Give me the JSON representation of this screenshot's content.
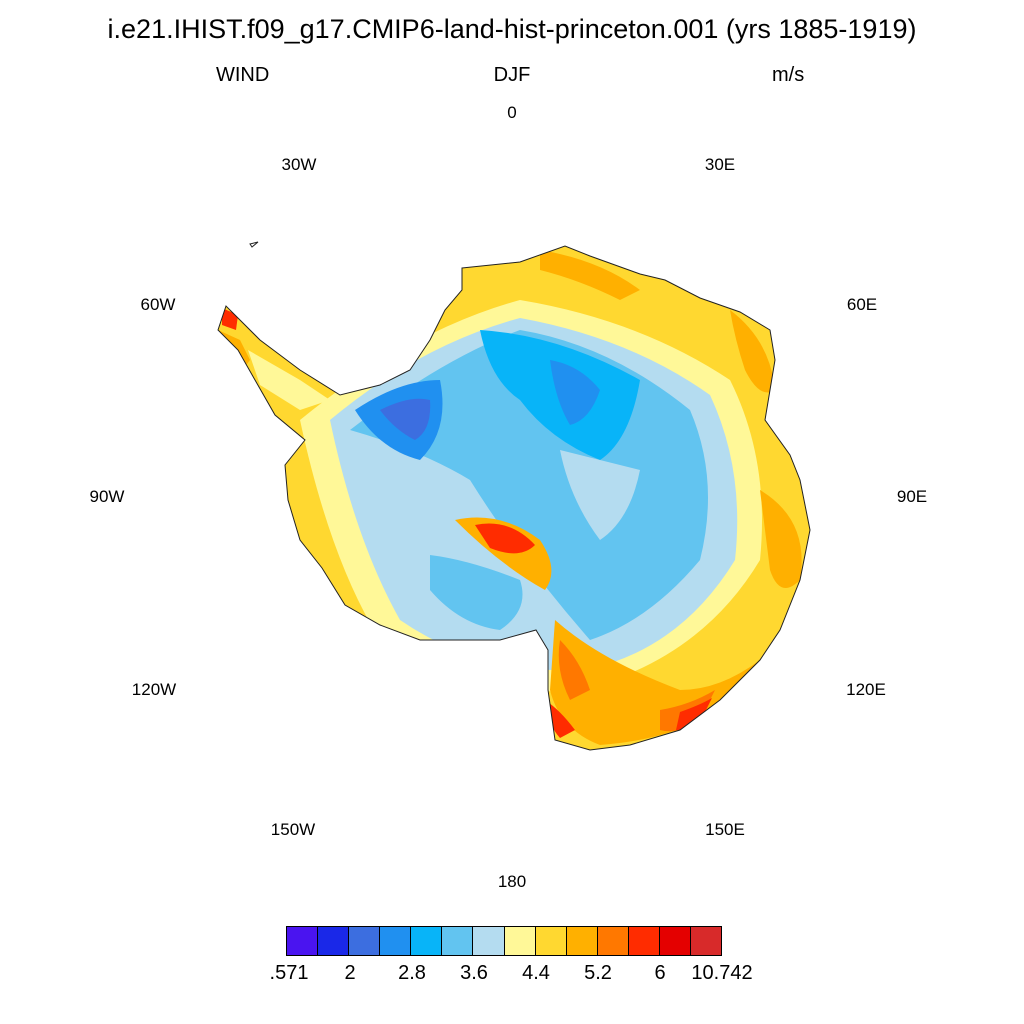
{
  "title": "i.e21.IHIST.f09_g17.CMIP6-land-hist-princeton.001 (yrs 1885-1919)",
  "subtitle": {
    "left": "WIND",
    "center": "DJF",
    "right": "m/s"
  },
  "longitude_labels": [
    "0",
    "30E",
    "60E",
    "90E",
    "120E",
    "150E",
    "180",
    "150W",
    "120W",
    "90W",
    "60W",
    "30W"
  ],
  "colorbar": {
    "colors": [
      "#4a14f0",
      "#1a28e8",
      "#3c6ee0",
      "#2090f0",
      "#08b4f8",
      "#62c4f0",
      "#b4dcf0",
      "#fff898",
      "#ffd830",
      "#ffb000",
      "#ff7800",
      "#ff2c00",
      "#e40000",
      "#d82a2a"
    ],
    "labels": [
      ".571",
      "2",
      "2.8",
      "3.6",
      "4.4",
      "5.2",
      "6",
      "10.742"
    ]
  }
}
